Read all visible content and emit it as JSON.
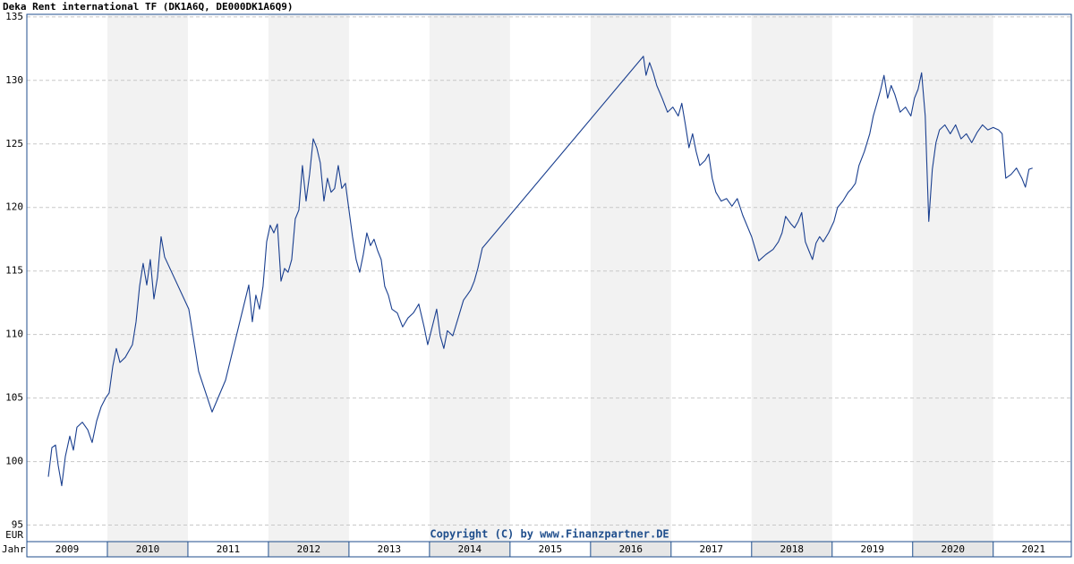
{
  "chart_data": {
    "type": "line",
    "title": "Deka Rent international TF (DK1A6Q, DE000DK1A6Q9)",
    "copyright": "Copyright (C) by www.Finanzpartner.DE",
    "y_unit": "EUR",
    "x_unit": "Jahr",
    "color": "#1a3f8f",
    "grid": true,
    "xlim": [
      2009,
      2021.97
    ],
    "ylim": [
      93.7,
      135.2
    ],
    "yticks": [
      95,
      100,
      105,
      110,
      115,
      120,
      125,
      130,
      135
    ],
    "xticks": [
      {
        "value": 2009.5,
        "label": "2009"
      },
      {
        "value": 2010.5,
        "label": "2010"
      },
      {
        "value": 2011.5,
        "label": "2011"
      },
      {
        "value": 2012.5,
        "label": "2012"
      },
      {
        "value": 2013.5,
        "label": "2013"
      },
      {
        "value": 2014.5,
        "label": "2014"
      },
      {
        "value": 2015.5,
        "label": "2015"
      },
      {
        "value": 2016.5,
        "label": "2016"
      },
      {
        "value": 2017.5,
        "label": "2017"
      },
      {
        "value": 2018.5,
        "label": "2018"
      },
      {
        "value": 2019.5,
        "label": "2019"
      },
      {
        "value": 2020.5,
        "label": "2020"
      },
      {
        "value": 2021.5,
        "label": "2021"
      }
    ],
    "x": [
      2009.267,
      2009.311,
      2009.356,
      2009.389,
      2009.433,
      2009.478,
      2009.533,
      2009.578,
      2009.622,
      2009.689,
      2009.756,
      2009.811,
      2009.867,
      2009.922,
      2009.978,
      2010.022,
      2010.067,
      2010.111,
      2010.156,
      2010.222,
      2010.311,
      2010.356,
      2010.4,
      2010.444,
      2010.489,
      2010.533,
      2010.578,
      2010.622,
      2010.667,
      2010.711,
      2011.011,
      2011.133,
      2011.3,
      2011.467,
      2011.756,
      2011.8,
      2011.844,
      2011.889,
      2011.933,
      2011.978,
      2012.022,
      2012.067,
      2012.111,
      2012.156,
      2012.2,
      2012.244,
      2012.289,
      2012.333,
      2012.378,
      2012.422,
      2012.467,
      2012.511,
      2012.556,
      2012.6,
      2012.644,
      2012.689,
      2012.733,
      2012.778,
      2012.822,
      2012.867,
      2012.911,
      2012.956,
      2013.0,
      2013.044,
      2013.089,
      2013.133,
      2013.178,
      2013.222,
      2013.267,
      2013.311,
      2013.356,
      2013.4,
      2013.444,
      2013.489,
      2013.533,
      2013.6,
      2013.667,
      2013.733,
      2013.8,
      2013.867,
      2013.933,
      2013.978,
      2014.022,
      2014.089,
      2014.133,
      2014.178,
      2014.222,
      2014.289,
      2014.356,
      2014.422,
      2014.467,
      2014.511,
      2014.556,
      2014.6,
      2014.656,
      2016.656,
      2016.689,
      2016.733,
      2016.778,
      2016.822,
      2016.889,
      2016.956,
      2017.022,
      2017.089,
      2017.133,
      2017.178,
      2017.222,
      2017.267,
      2017.311,
      2017.356,
      2017.422,
      2017.467,
      2017.511,
      2017.556,
      2017.622,
      2017.689,
      2017.756,
      2017.822,
      2017.889,
      2018.0,
      2018.089,
      2018.178,
      2018.267,
      2018.333,
      2018.378,
      2018.422,
      2018.489,
      2018.533,
      2018.578,
      2018.622,
      2018.667,
      2018.711,
      2018.756,
      2018.8,
      2018.844,
      2018.889,
      2018.956,
      2019.022,
      2019.067,
      2019.133,
      2019.2,
      2019.244,
      2019.289,
      2019.333,
      2019.4,
      2019.467,
      2019.511,
      2019.556,
      2019.6,
      2019.644,
      2019.689,
      2019.733,
      2019.778,
      2019.844,
      2019.911,
      2019.978,
      2020.022,
      2020.067,
      2020.111,
      2020.156,
      2020.178,
      2020.2,
      2020.244,
      2020.289,
      2020.333,
      2020.4,
      2020.467,
      2020.533,
      2020.6,
      2020.667,
      2020.733,
      2020.8,
      2020.867,
      2020.933,
      2021.0,
      2021.067,
      2021.111,
      2021.156,
      2021.222,
      2021.289,
      2021.356,
      2021.4,
      2021.444,
      2021.489
    ],
    "values": [
      98.8,
      101.1,
      101.3,
      99.7,
      98.1,
      100.4,
      102.0,
      100.9,
      102.7,
      103.1,
      102.5,
      101.5,
      103.2,
      104.3,
      105.0,
      105.4,
      107.5,
      108.9,
      107.8,
      108.2,
      109.2,
      111.0,
      113.8,
      115.6,
      113.9,
      115.9,
      112.8,
      114.5,
      117.7,
      116.1,
      112.0,
      107.1,
      103.9,
      106.4,
      113.9,
      111.0,
      113.1,
      112.0,
      113.8,
      117.3,
      118.6,
      118.0,
      118.7,
      114.2,
      115.2,
      114.9,
      115.9,
      119.1,
      119.8,
      123.3,
      120.5,
      122.6,
      125.4,
      124.7,
      123.5,
      120.5,
      122.3,
      121.2,
      121.5,
      123.3,
      121.5,
      121.9,
      119.8,
      117.7,
      115.9,
      114.9,
      116.3,
      118.0,
      117.0,
      117.5,
      116.6,
      115.9,
      113.8,
      113.1,
      112.0,
      111.7,
      110.6,
      111.3,
      111.7,
      112.4,
      110.6,
      109.2,
      110.3,
      112.0,
      109.9,
      108.9,
      110.3,
      109.9,
      111.3,
      112.7,
      113.1,
      113.5,
      114.2,
      115.2,
      116.8,
      131.9,
      130.4,
      131.4,
      130.6,
      129.6,
      128.6,
      127.5,
      127.9,
      127.2,
      128.2,
      126.5,
      124.7,
      125.8,
      124.4,
      123.3,
      123.7,
      124.2,
      122.3,
      121.2,
      120.5,
      120.7,
      120.1,
      120.7,
      119.4,
      117.7,
      115.8,
      116.3,
      116.7,
      117.3,
      118.0,
      119.3,
      118.7,
      118.4,
      118.9,
      119.6,
      117.3,
      116.6,
      115.9,
      117.2,
      117.7,
      117.3,
      118.0,
      118.9,
      120.0,
      120.5,
      121.2,
      121.5,
      121.9,
      123.3,
      124.4,
      125.8,
      127.2,
      128.2,
      129.2,
      130.4,
      128.6,
      129.6,
      128.9,
      127.5,
      127.9,
      127.2,
      128.6,
      129.3,
      130.6,
      127.2,
      123.0,
      118.9,
      123.0,
      125.1,
      126.1,
      126.5,
      125.8,
      126.5,
      125.4,
      125.8,
      125.1,
      125.9,
      126.5,
      126.1,
      126.3,
      126.1,
      125.8,
      122.3,
      122.6,
      123.1,
      122.3,
      121.6,
      123.0,
      123.1
    ]
  }
}
